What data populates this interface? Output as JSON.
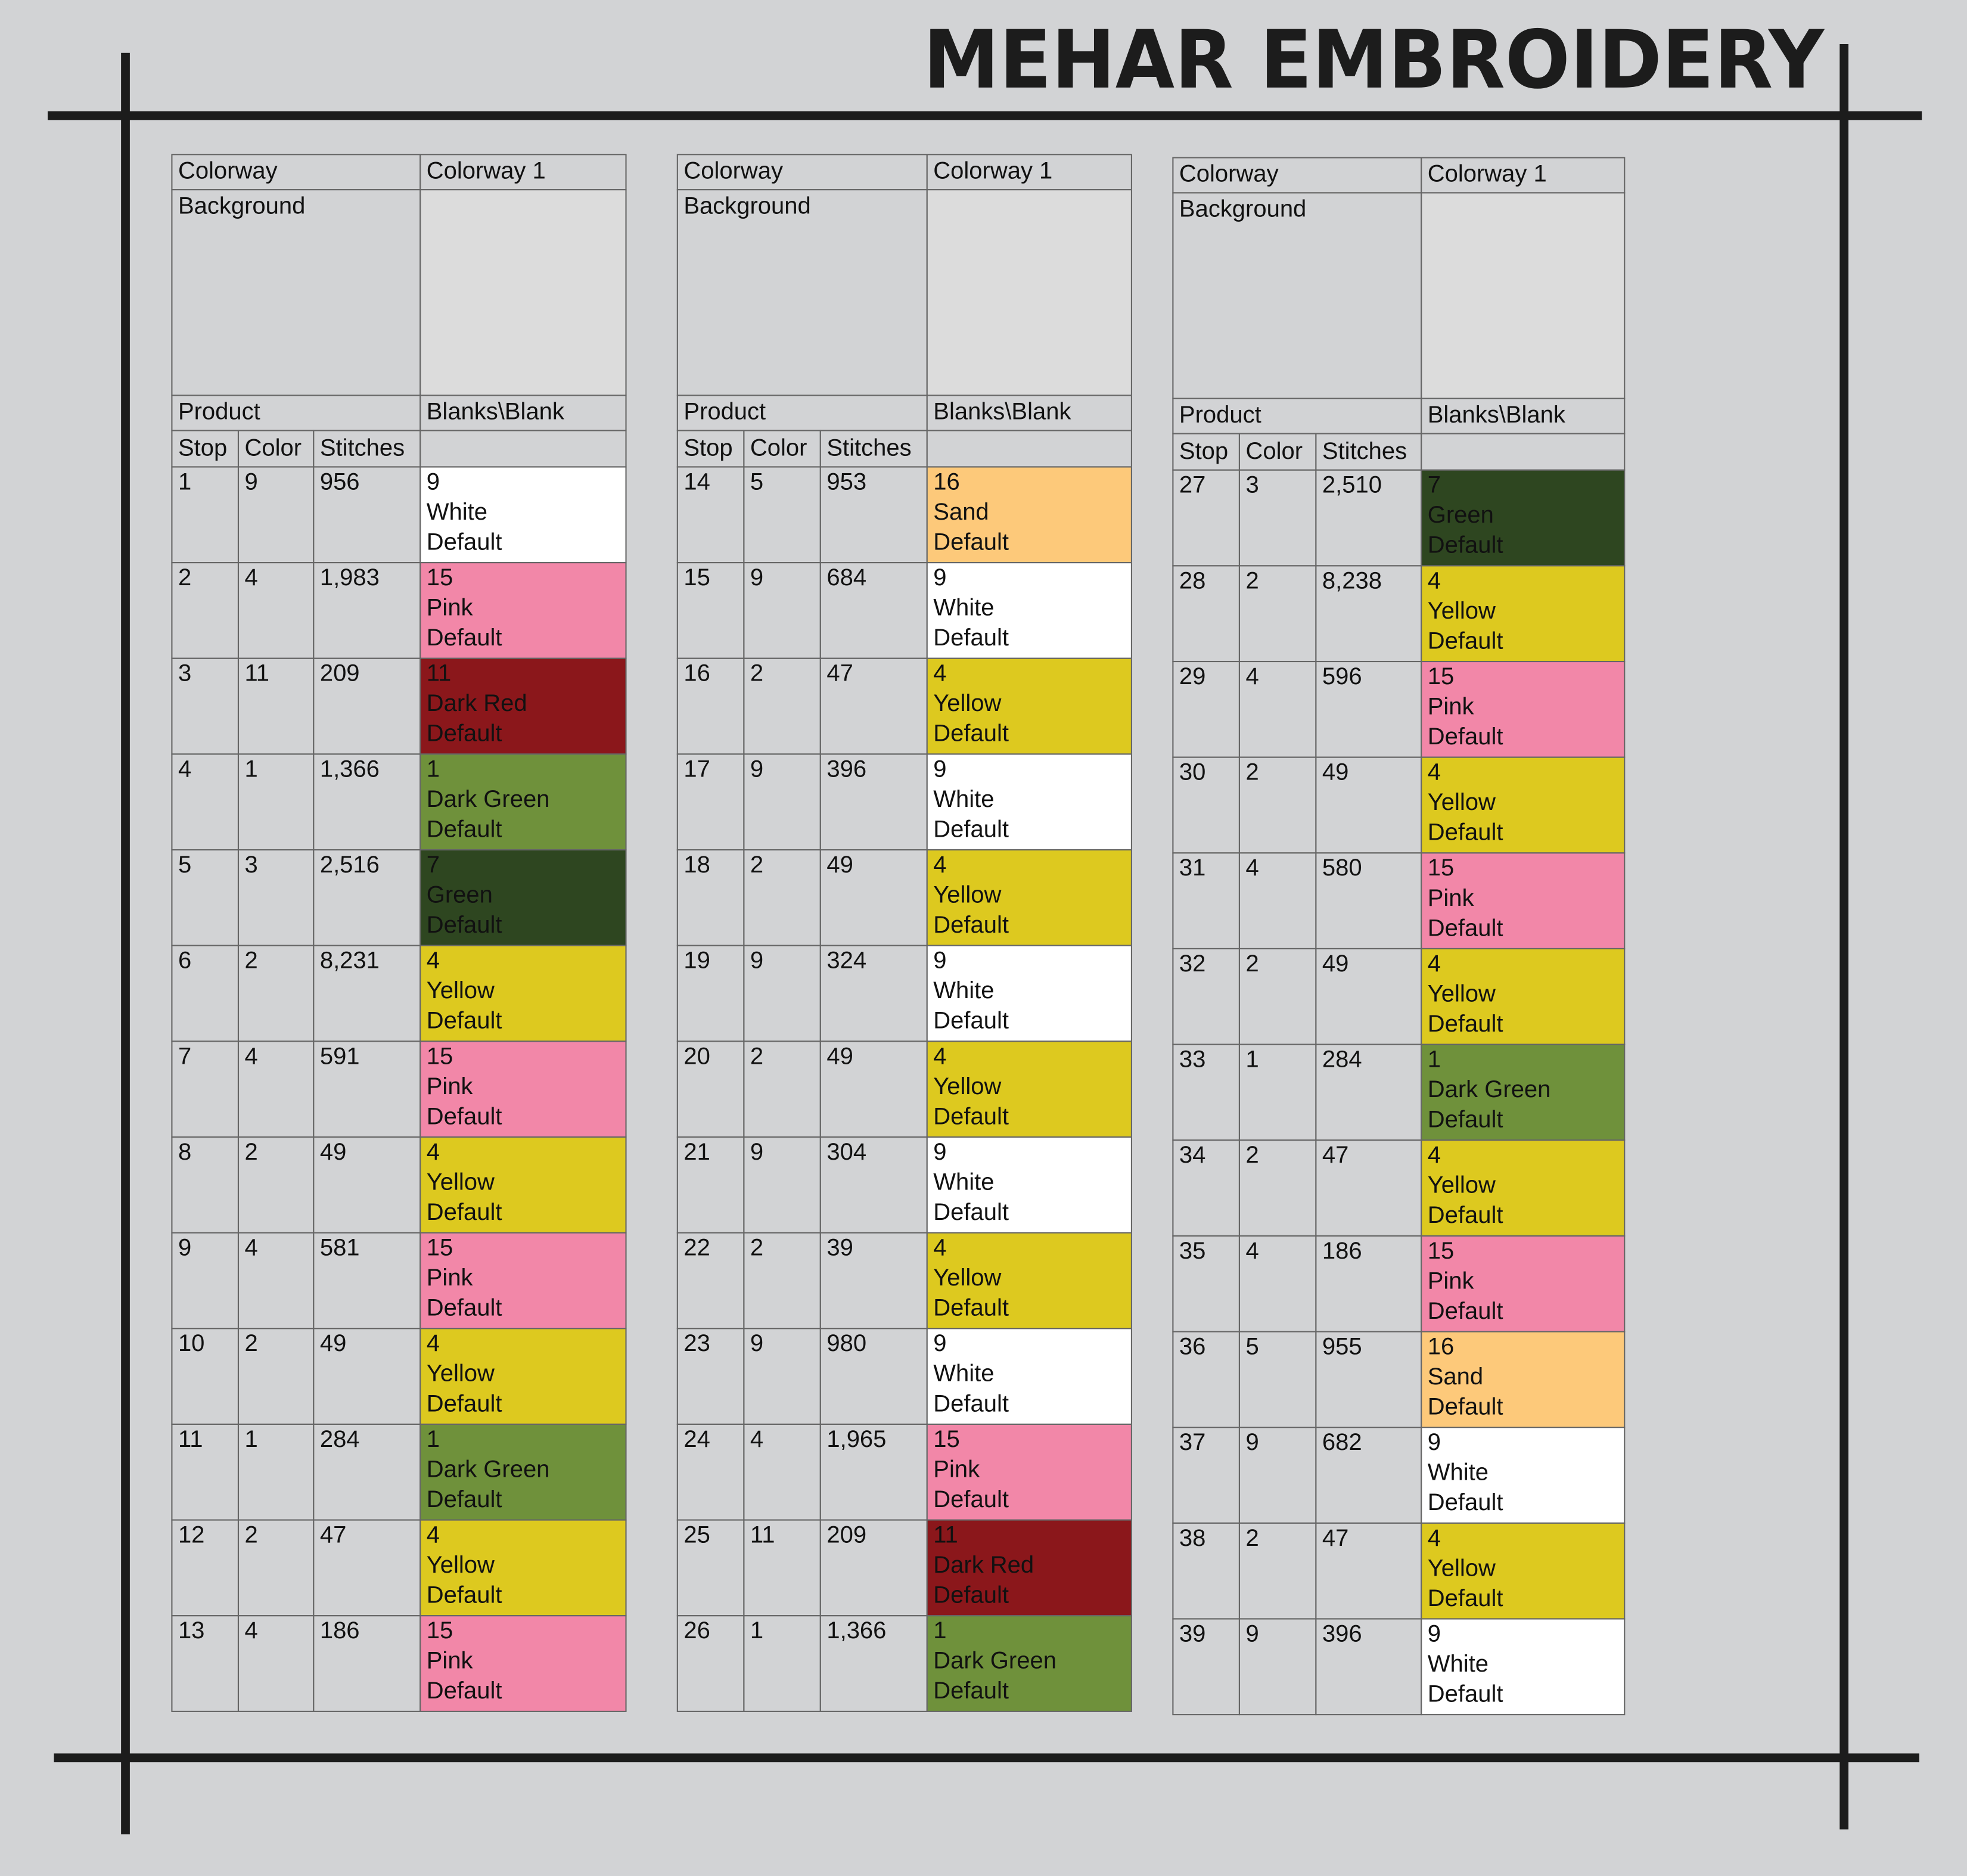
{
  "header": {
    "title": "MEHAR EMBROIDERY"
  },
  "tables": [
    {
      "colorway_label": "Colorway",
      "colorway": "Colorway 1",
      "background_label": "Background",
      "product_label": "Product",
      "product": "Blanks\\Blank",
      "columns": [
        "Stop",
        "Color",
        "Stitches"
      ],
      "rows": [
        [
          "1",
          "9",
          "956",
          "9",
          "White",
          "Default",
          "#ffffff"
        ],
        [
          "2",
          "4",
          "1,983",
          "15",
          "Pink",
          "Default",
          "#f287a8"
        ],
        [
          "3",
          "11",
          "209",
          "11",
          "Dark Red",
          "Default",
          "#8b171b"
        ],
        [
          "4",
          "1",
          "1,366",
          "1",
          "Dark Green",
          "Default",
          "#6f913b"
        ],
        [
          "5",
          "3",
          "2,516",
          "7",
          "Green",
          "Default",
          "#2e4620"
        ],
        [
          "6",
          "2",
          "8,231",
          "4",
          "Yellow",
          "Default",
          "#ddc91f"
        ],
        [
          "7",
          "4",
          "591",
          "15",
          "Pink",
          "Default",
          "#f287a8"
        ],
        [
          "8",
          "2",
          "49",
          "4",
          "Yellow",
          "Default",
          "#ddc91f"
        ],
        [
          "9",
          "4",
          "581",
          "15",
          "Pink",
          "Default",
          "#f287a8"
        ],
        [
          "10",
          "2",
          "49",
          "4",
          "Yellow",
          "Default",
          "#ddc91f"
        ],
        [
          "11",
          "1",
          "284",
          "1",
          "Dark Green",
          "Default",
          "#6f913b"
        ],
        [
          "12",
          "2",
          "47",
          "4",
          "Yellow",
          "Default",
          "#ddc91f"
        ],
        [
          "13",
          "4",
          "186",
          "15",
          "Pink",
          "Default",
          "#f287a8"
        ]
      ]
    },
    {
      "colorway_label": "Colorway",
      "colorway": "Colorway 1",
      "background_label": "Background",
      "product_label": "Product",
      "product": "Blanks\\Blank",
      "columns": [
        "Stop",
        "Color",
        "Stitches"
      ],
      "rows": [
        [
          "14",
          "5",
          "953",
          "16",
          "Sand",
          "Default",
          "#fdc97a"
        ],
        [
          "15",
          "9",
          "684",
          "9",
          "White",
          "Default",
          "#ffffff"
        ],
        [
          "16",
          "2",
          "47",
          "4",
          "Yellow",
          "Default",
          "#ddc91f"
        ],
        [
          "17",
          "9",
          "396",
          "9",
          "White",
          "Default",
          "#ffffff"
        ],
        [
          "18",
          "2",
          "49",
          "4",
          "Yellow",
          "Default",
          "#ddc91f"
        ],
        [
          "19",
          "9",
          "324",
          "9",
          "White",
          "Default",
          "#ffffff"
        ],
        [
          "20",
          "2",
          "49",
          "4",
          "Yellow",
          "Default",
          "#ddc91f"
        ],
        [
          "21",
          "9",
          "304",
          "9",
          "White",
          "Default",
          "#ffffff"
        ],
        [
          "22",
          "2",
          "39",
          "4",
          "Yellow",
          "Default",
          "#ddc91f"
        ],
        [
          "23",
          "9",
          "980",
          "9",
          "White",
          "Default",
          "#ffffff"
        ],
        [
          "24",
          "4",
          "1,965",
          "15",
          "Pink",
          "Default",
          "#f287a8"
        ],
        [
          "25",
          "11",
          "209",
          "11",
          "Dark Red",
          "Default",
          "#8b171b"
        ],
        [
          "26",
          "1",
          "1,366",
          "1",
          "Dark Green",
          "Default",
          "#6f913b"
        ]
      ]
    },
    {
      "colorway_label": "Colorway",
      "colorway": "Colorway 1",
      "background_label": "Background",
      "product_label": "Product",
      "product": "Blanks\\Blank",
      "columns": [
        "Stop",
        "Color",
        "Stitches"
      ],
      "rows": [
        [
          "27",
          "3",
          "2,510",
          "7",
          "Green",
          "Default",
          "#2e4620"
        ],
        [
          "28",
          "2",
          "8,238",
          "4",
          "Yellow",
          "Default",
          "#ddc91f"
        ],
        [
          "29",
          "4",
          "596",
          "15",
          "Pink",
          "Default",
          "#f287a8"
        ],
        [
          "30",
          "2",
          "49",
          "4",
          "Yellow",
          "Default",
          "#ddc91f"
        ],
        [
          "31",
          "4",
          "580",
          "15",
          "Pink",
          "Default",
          "#f287a8"
        ],
        [
          "32",
          "2",
          "49",
          "4",
          "Yellow",
          "Default",
          "#ddc91f"
        ],
        [
          "33",
          "1",
          "284",
          "1",
          "Dark Green",
          "Default",
          "#6f913b"
        ],
        [
          "34",
          "2",
          "47",
          "4",
          "Yellow",
          "Default",
          "#ddc91f"
        ],
        [
          "35",
          "4",
          "186",
          "15",
          "Pink",
          "Default",
          "#f287a8"
        ],
        [
          "36",
          "5",
          "955",
          "16",
          "Sand",
          "Default",
          "#fdc97a"
        ],
        [
          "37",
          "9",
          "682",
          "9",
          "White",
          "Default",
          "#ffffff"
        ],
        [
          "38",
          "2",
          "47",
          "4",
          "Yellow",
          "Default",
          "#ddc91f"
        ],
        [
          "39",
          "9",
          "396",
          "9",
          "White",
          "Default",
          "#ffffff"
        ]
      ]
    }
  ]
}
